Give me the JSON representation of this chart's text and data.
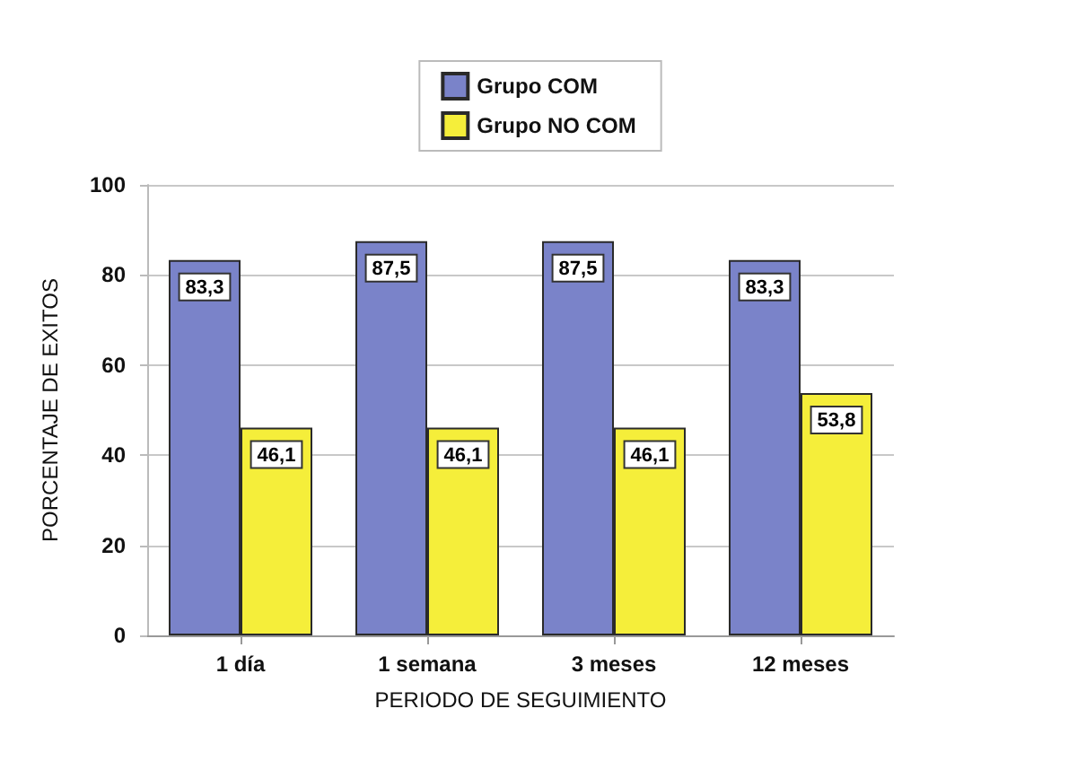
{
  "chart_data": {
    "type": "bar",
    "xlabel": "PERIODO DE SEGUIMIENTO",
    "ylabel": "PORCENTAJE DE EXITOS",
    "categories": [
      "1 día",
      "1 semana",
      "3 meses",
      "12 meses"
    ],
    "series": [
      {
        "name": "Grupo COM",
        "color": "#7a83c9",
        "values": [
          83.3,
          87.5,
          87.5,
          83.3
        ],
        "value_labels": [
          "83,3",
          "87,5",
          "87,5",
          "83,3"
        ]
      },
      {
        "name": "Grupo NO COM",
        "color": "#f5ee3a",
        "values": [
          46.1,
          46.1,
          46.1,
          53.8
        ],
        "value_labels": [
          "46,1",
          "46,1",
          "46,1",
          "53,8"
        ]
      }
    ],
    "ylim": [
      0,
      100
    ],
    "yticks": [
      0,
      20,
      40,
      60,
      80,
      100
    ],
    "grid": "y",
    "legend": "top"
  }
}
